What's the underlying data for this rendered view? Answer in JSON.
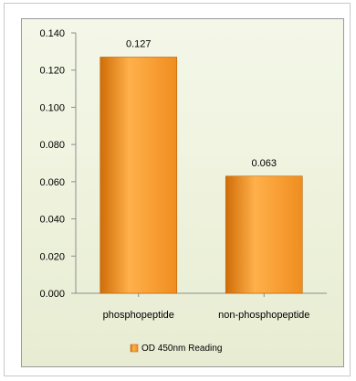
{
  "chart_data": {
    "type": "bar",
    "categories": [
      "phosphopeptide",
      "non-phosphopeptide"
    ],
    "series": [
      {
        "name": "OD 450nm Reading",
        "values": [
          0.127,
          0.063
        ],
        "data_labels": [
          "0.127",
          "0.063"
        ]
      }
    ],
    "title": "",
    "xlabel": "",
    "ylabel": "",
    "ylim": [
      0,
      0.14
    ],
    "yticks": [
      0.0,
      0.02,
      0.04,
      0.06,
      0.08,
      0.1,
      0.12,
      0.14
    ],
    "ytick_labels": [
      "0.000",
      "0.020",
      "0.040",
      "0.060",
      "0.080",
      "0.100",
      "0.120",
      "0.140"
    ],
    "grid": false,
    "legend": "bottom"
  },
  "colors": {
    "bar_main": "#f08d1f",
    "bar_light": "#ffb04a",
    "bar_dark": "#cf6d07",
    "axis": "#8e8e8e"
  }
}
